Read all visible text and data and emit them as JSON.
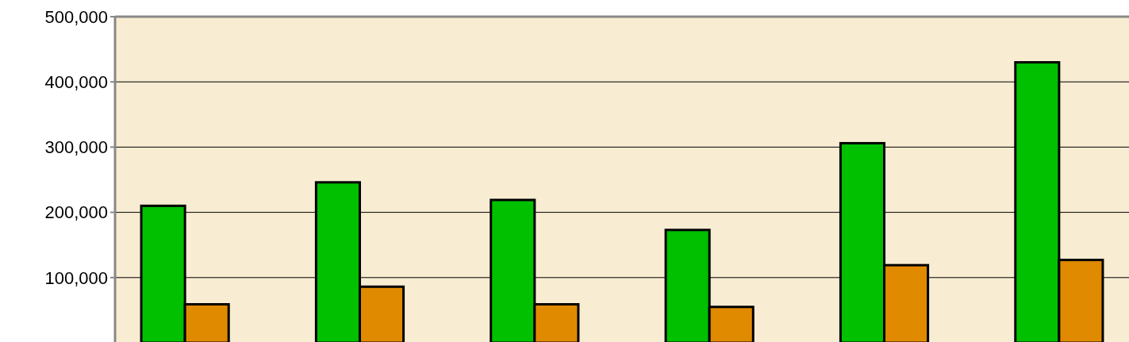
{
  "chart_data": {
    "type": "bar",
    "categories": [
      null,
      null,
      null,
      null,
      null,
      null
    ],
    "series": [
      {
        "color": "#00c000",
        "values": [
          210000,
          246000,
          219000,
          173000,
          306000,
          430000
        ]
      },
      {
        "color": "#e08a00",
        "values": [
          59000,
          86000,
          59000,
          55000,
          119000,
          127000
        ]
      }
    ],
    "ylim": [
      0,
      500000
    ],
    "yticks": [
      {
        "value": 100000,
        "label": "100,000"
      },
      {
        "value": 200000,
        "label": "200,000"
      },
      {
        "value": 300000,
        "label": "300,000"
      },
      {
        "value": 400000,
        "label": "400,000"
      },
      {
        "value": 500000,
        "label": "500,000"
      }
    ],
    "grid": "y"
  }
}
